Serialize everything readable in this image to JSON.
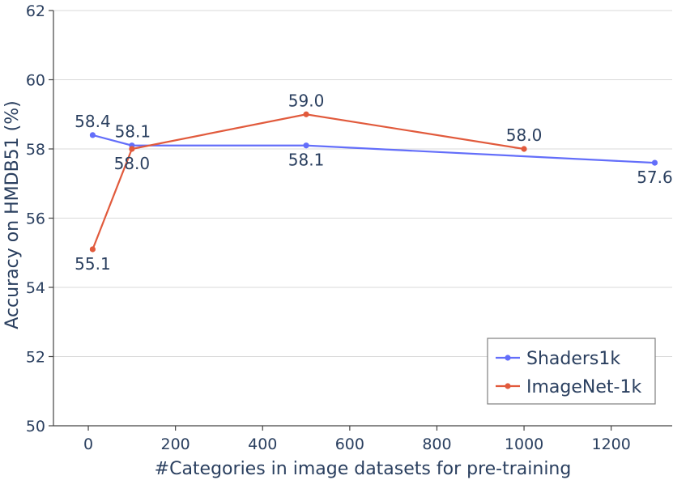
{
  "chart_data": {
    "type": "line",
    "title": "",
    "xlabel": "#Categories in image datasets for pre-training",
    "ylabel": "Accuracy on HMDB51 (%)",
    "xlim": [
      -80,
      1340
    ],
    "ylim": [
      50,
      62
    ],
    "xticks": [
      0,
      200,
      400,
      600,
      800,
      1000,
      1200
    ],
    "yticks": [
      50,
      52,
      54,
      56,
      58,
      60,
      62
    ],
    "grid": "horizontal",
    "legend": "bottom-right",
    "series": [
      {
        "name": "Shaders1k",
        "color": "#636efa",
        "x": [
          10,
          100,
          500,
          1300
        ],
        "y": [
          58.4,
          58.1,
          58.1,
          57.6
        ],
        "labels": [
          "58.4",
          "58.1",
          "58.1",
          "57.6"
        ],
        "label_pos": [
          "above",
          "above-right",
          "below",
          "below"
        ]
      },
      {
        "name": "ImageNet-1k",
        "color": "#e15a3c",
        "x": [
          10,
          100,
          500,
          1000
        ],
        "y": [
          55.1,
          58.0,
          59.0,
          58.0
        ],
        "labels": [
          "55.1",
          "58.0",
          "59.0",
          "58.0"
        ],
        "label_pos": [
          "below",
          "below",
          "above",
          "above"
        ]
      }
    ]
  }
}
